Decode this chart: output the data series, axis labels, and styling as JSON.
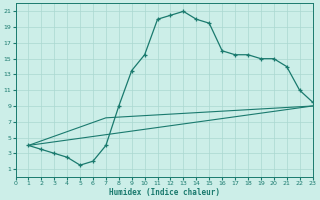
{
  "xlabel": "Humidex (Indice chaleur)",
  "bg_color": "#cceee8",
  "line_color": "#1a7a6e",
  "grid_color": "#aad8d0",
  "xlim": [
    0,
    23
  ],
  "ylim": [
    0,
    22
  ],
  "xticks": [
    0,
    1,
    2,
    3,
    4,
    5,
    6,
    7,
    8,
    9,
    10,
    11,
    12,
    13,
    14,
    15,
    16,
    17,
    18,
    19,
    20,
    21,
    22,
    23
  ],
  "yticks": [
    1,
    3,
    5,
    7,
    9,
    11,
    13,
    15,
    17,
    19,
    21
  ],
  "line1_x": [
    1,
    2,
    3,
    4,
    5,
    6,
    7,
    8,
    9,
    10,
    11,
    12,
    13,
    14,
    15,
    16,
    17,
    18,
    19,
    20,
    21,
    22,
    23
  ],
  "line1_y": [
    4.0,
    3.5,
    3.0,
    2.5,
    1.5,
    2.0,
    4.0,
    9.0,
    13.5,
    15.5,
    20.0,
    20.5,
    21.0,
    20.0,
    19.5,
    16.0,
    15.5,
    15.5,
    15.0,
    15.0,
    14.0,
    11.0,
    9.5
  ],
  "line2_x": [
    1,
    23
  ],
  "line2_y": [
    4.0,
    9.0
  ],
  "line3_x": [
    1,
    7,
    23
  ],
  "line3_y": [
    4.0,
    7.5,
    9.0
  ]
}
